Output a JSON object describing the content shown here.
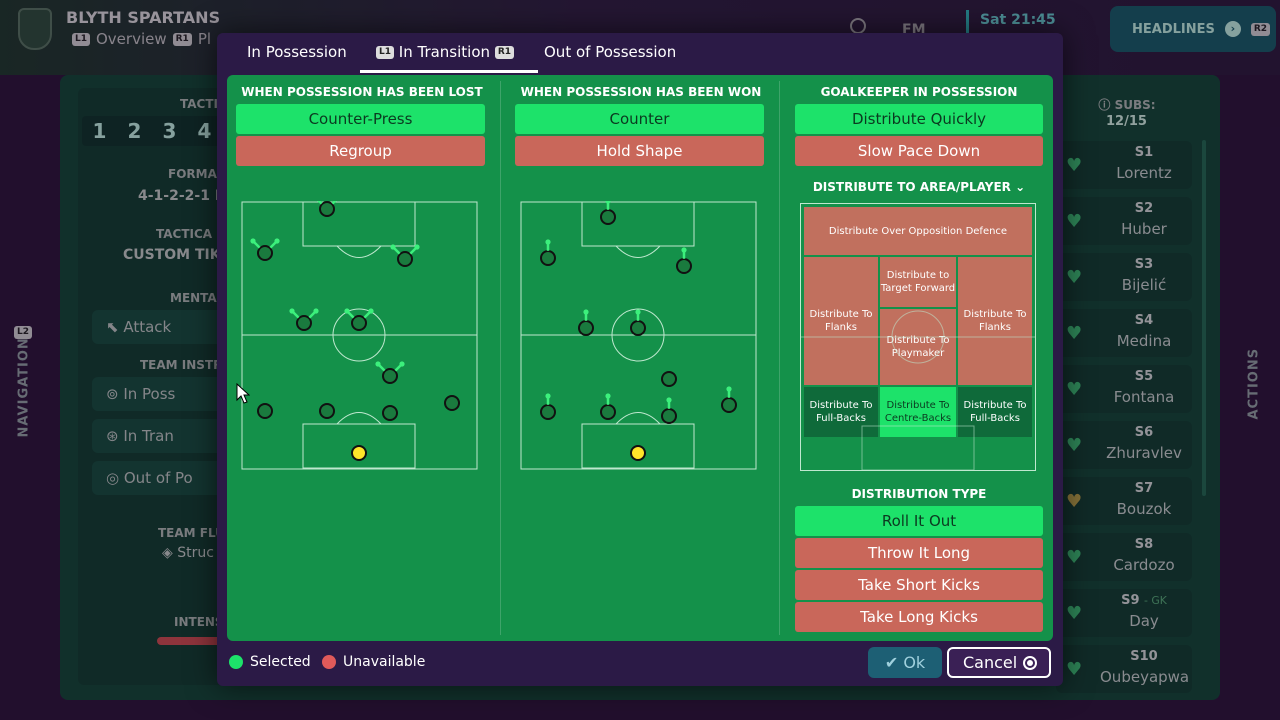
{
  "background": {
    "club_name": "BLYTH SPARTANS",
    "nav_items": [
      "Overview",
      "Pl"
    ],
    "nav_button_l1": "L1",
    "nav_button_r1": "R1",
    "fm_label": "FM",
    "datetime": "Sat 21:45",
    "headlines": "HEADLINES",
    "headlines_button": "R2",
    "navigation_label": "NAVIGATION",
    "navigation_button": "L2",
    "actions_label": "ACTIONS",
    "tactic_header": "TACTI",
    "tactic_slots": [
      "1",
      "2",
      "3",
      "4"
    ],
    "formation_header": "FORMA",
    "formation_value": "4-1-2-2-1 R",
    "tactical_style_header": "TACTICA",
    "tactical_style_value": "CUSTOM TIKI",
    "mentality_header": "MENTA",
    "mentality_value": "Attack",
    "team_instructions_header": "TEAM INSTR",
    "team_instructions": [
      "In Poss",
      "In Tran",
      "Out of Po"
    ],
    "team_fluidity_header": "TEAM FLU",
    "team_fluidity_value": "Struc",
    "intensity_header": "INTENS",
    "subs_header": "SUBS:",
    "subs_count": "12/15",
    "subs": [
      {
        "code": "S1",
        "tag": "",
        "name": "Lorentz",
        "heart": "green"
      },
      {
        "code": "S2",
        "tag": "",
        "name": "Huber",
        "heart": "green"
      },
      {
        "code": "S3",
        "tag": "",
        "name": "Bijelić",
        "heart": "green"
      },
      {
        "code": "S4",
        "tag": "",
        "name": "Medina",
        "heart": "green"
      },
      {
        "code": "S5",
        "tag": "",
        "name": "Fontana",
        "heart": "green"
      },
      {
        "code": "S6",
        "tag": "",
        "name": "Zhuravlev",
        "heart": "green"
      },
      {
        "code": "S7",
        "tag": "",
        "name": "Bouzok",
        "heart": "amber"
      },
      {
        "code": "S8",
        "tag": "",
        "name": "Cardozo",
        "heart": "green"
      },
      {
        "code": "S9",
        "tag": "- GK",
        "name": "Day",
        "heart": "green"
      },
      {
        "code": "S10",
        "tag": "",
        "name": "Oubeyapwa",
        "heart": "green"
      }
    ]
  },
  "modal": {
    "tabs": [
      {
        "label": "In Possession",
        "button": "",
        "active": false
      },
      {
        "label": "In Transition",
        "button_left": "L1",
        "button_right": "R1",
        "active": true
      },
      {
        "label": "Out of Possession",
        "button": "",
        "active": false
      }
    ],
    "columns": [
      {
        "title": "WHEN POSSESSION HAS BEEN LOST",
        "options": [
          {
            "label": "Counter-Press",
            "state": "selected"
          },
          {
            "label": "Regroup",
            "state": "unavailable"
          }
        ]
      },
      {
        "title": "WHEN POSSESSION HAS BEEN WON",
        "options": [
          {
            "label": "Counter",
            "state": "selected"
          },
          {
            "label": "Hold Shape",
            "state": "unavailable"
          }
        ]
      },
      {
        "title": "GOALKEEPER IN POSSESSION",
        "options": [
          {
            "label": "Distribute Quickly",
            "state": "selected"
          },
          {
            "label": "Slow Pace Down",
            "state": "unavailable"
          }
        ]
      }
    ],
    "distribute_title": "DISTRIBUTE TO AREA/PLAYER",
    "zones": {
      "over_defence": "Distribute Over Opposition Defence",
      "flanks_left": "Distribute To Flanks",
      "target_forward": "Distribute to Target Forward",
      "flanks_right": "Distribute To Flanks",
      "playmaker": "Distribute To Playmaker",
      "fullbacks_left": "Distribute To Full-Backs",
      "centre_backs": "Distribute To Centre-Backs",
      "fullbacks_right": "Distribute To Full-Backs"
    },
    "distribution_type_title": "DISTRIBUTION TYPE",
    "distribution_types": [
      {
        "label": "Roll It Out",
        "state": "selected"
      },
      {
        "label": "Throw It Long",
        "state": "unavailable"
      },
      {
        "label": "Take Short Kicks",
        "state": "unavailable"
      },
      {
        "label": "Take Long Kicks",
        "state": "unavailable"
      }
    ],
    "legend_selected": "Selected",
    "legend_unavailable": "Unavailable",
    "ok_label": "Ok",
    "cancel_label": "Cancel"
  },
  "colors": {
    "selected": "#1de26a",
    "unavailable": "#e05a5a",
    "pitch": "#14914a",
    "modal": "#2b1a46"
  }
}
